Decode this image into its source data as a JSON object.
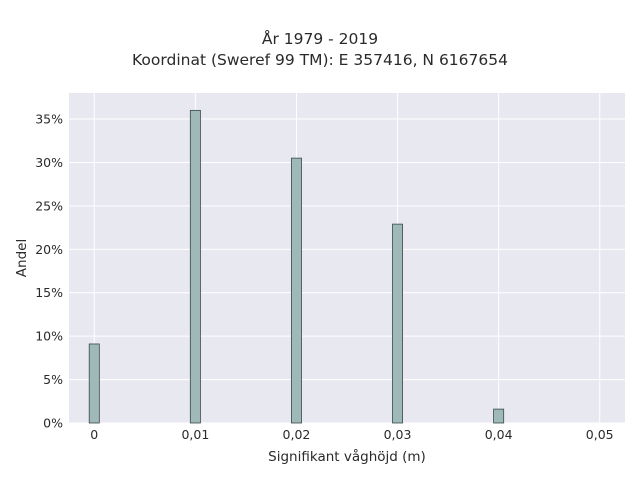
{
  "chart_data": {
    "type": "bar",
    "title": "År 1979 - 2019",
    "subtitle": "Koordinat (Sweref 99 TM): E 357416, N 6167654",
    "xlabel": "Signifikant våghöjd (m)",
    "ylabel": "Andel",
    "x": [
      0,
      0.01,
      0.02,
      0.03,
      0.04
    ],
    "values": [
      9.1,
      36.0,
      30.5,
      22.9,
      1.6
    ],
    "xlim": [
      -0.0025,
      0.0525
    ],
    "ylim": [
      0,
      38
    ],
    "xticks": [
      0,
      0.01,
      0.02,
      0.03,
      0.04,
      0.05
    ],
    "xtick_labels": [
      "0",
      "0,01",
      "0,02",
      "0,03",
      "0,04",
      "0,05"
    ],
    "yticks": [
      0,
      5,
      10,
      15,
      20,
      25,
      30,
      35
    ],
    "ytick_labels": [
      "0%",
      "5%",
      "10%",
      "15%",
      "20%",
      "25%",
      "30%",
      "35%"
    ],
    "bar_width": 0.001,
    "grid": true,
    "legend": "none",
    "colors": {
      "bar_fill": "#9fb8b8",
      "bar_stroke": "#3a4a4a",
      "plot_bg": "#e8e8f0",
      "grid": "#ffffff"
    }
  }
}
